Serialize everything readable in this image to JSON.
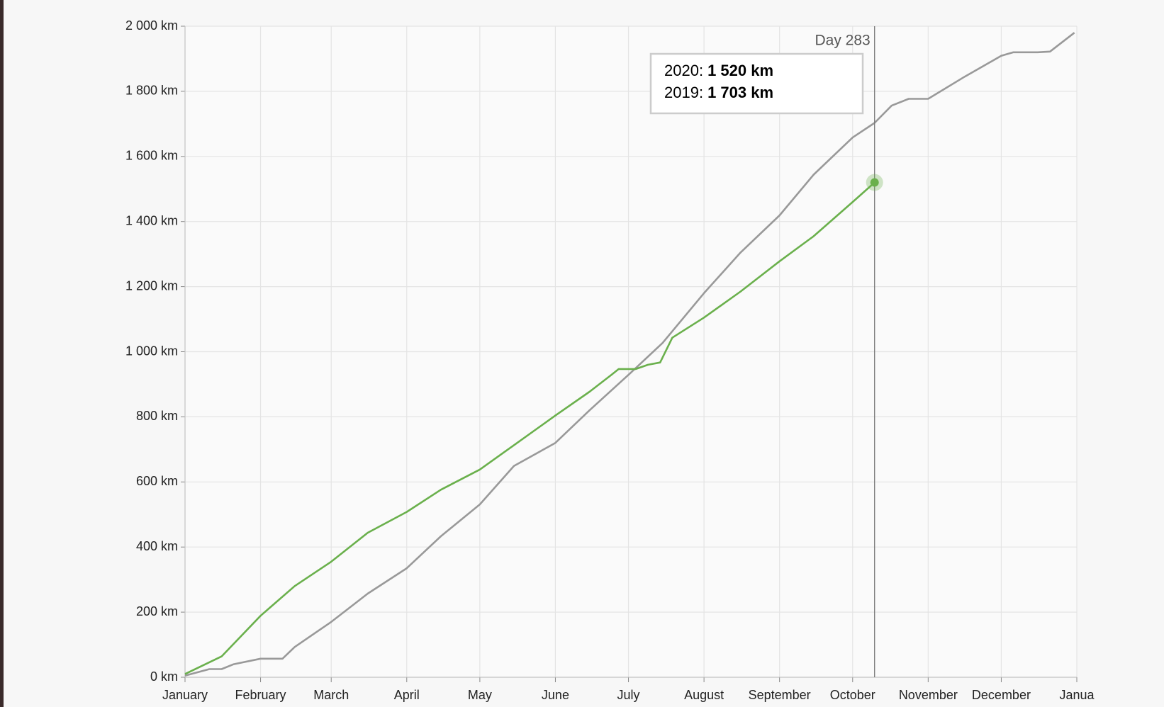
{
  "chart_data": {
    "type": "line",
    "xlim": [
      0,
      366
    ],
    "ylim": [
      0,
      2000
    ],
    "xticks": [
      {
        "value": 0,
        "label": "January"
      },
      {
        "value": 31,
        "label": "February"
      },
      {
        "value": 60,
        "label": "March"
      },
      {
        "value": 91,
        "label": "April"
      },
      {
        "value": 121,
        "label": "May"
      },
      {
        "value": 152,
        "label": "June"
      },
      {
        "value": 182,
        "label": "July"
      },
      {
        "value": 213,
        "label": "August"
      },
      {
        "value": 244,
        "label": "September"
      },
      {
        "value": 274,
        "label": "October"
      },
      {
        "value": 305,
        "label": "November"
      },
      {
        "value": 335,
        "label": "December"
      },
      {
        "value": 366,
        "label": "Janua"
      }
    ],
    "yticks": [
      {
        "value": 0,
        "label": "0 km"
      },
      {
        "value": 200,
        "label": "200 km"
      },
      {
        "value": 400,
        "label": "400 km"
      },
      {
        "value": 600,
        "label": "600 km"
      },
      {
        "value": 800,
        "label": "800 km"
      },
      {
        "value": 1000,
        "label": "1 000 km"
      },
      {
        "value": 1200,
        "label": "1 200 km"
      },
      {
        "value": 1400,
        "label": "1 400 km"
      },
      {
        "value": 1600,
        "label": "1 600 km"
      },
      {
        "value": 1800,
        "label": "1 800 km"
      },
      {
        "value": 2000,
        "label": "2 000 km"
      }
    ],
    "grid": true,
    "series": [
      {
        "name": "2019",
        "color": "#999999",
        "x": [
          0,
          10,
          15,
          20,
          31,
          40,
          45,
          60,
          75,
          91,
          105,
          121,
          135,
          152,
          166,
          182,
          196,
          213,
          228,
          244,
          258,
          274,
          283,
          290,
          297,
          305,
          320,
          335,
          340,
          350,
          355,
          365
        ],
        "values": [
          5,
          25,
          25,
          40,
          57,
          57,
          93,
          170,
          257,
          335,
          433,
          531,
          649,
          720,
          820,
          929,
          1027,
          1180,
          1305,
          1419,
          1544,
          1658,
          1703,
          1756,
          1777,
          1777,
          1845,
          1909,
          1920,
          1920,
          1922,
          1980
        ]
      },
      {
        "name": "2020",
        "color": "#6ab04c",
        "x": [
          0,
          15,
          31,
          45,
          60,
          75,
          91,
          105,
          121,
          135,
          152,
          166,
          175,
          178,
          185,
          190,
          195,
          200,
          213,
          228,
          244,
          258,
          274,
          283
        ],
        "values": [
          10,
          64,
          189,
          280,
          355,
          444,
          508,
          576,
          638,
          713,
          804,
          877,
          929,
          947,
          947,
          960,
          967,
          1043,
          1105,
          1185,
          1278,
          1355,
          1460,
          1520
        ]
      }
    ],
    "cursor": {
      "value": 283,
      "label": "Day 283"
    },
    "tooltip": [
      {
        "name": "2020:",
        "value": "1 520 km"
      },
      {
        "name": "2019:",
        "value": "1 703 km"
      }
    ]
  }
}
